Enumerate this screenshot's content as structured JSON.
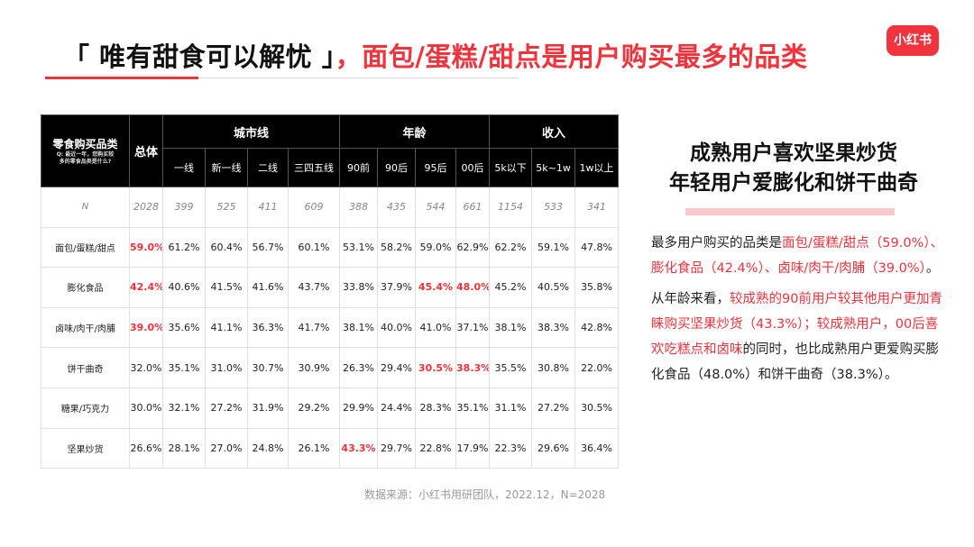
{
  "title": {
    "part1": "「 唯有甜食可以解忧 」",
    "part2": "，面包/蛋糕/甜点是用户购买最多的品类"
  },
  "brand": "小红书",
  "table": {
    "category_header": "零食购买品类",
    "category_subheader": "Q: 最近一年，您购买较多的零食品类是什么?",
    "total_header": "总体",
    "groups": {
      "city": "城市线",
      "age": "年龄",
      "income": "收入"
    },
    "columns": [
      "一线",
      "新一线",
      "二线",
      "三四五线",
      "90前",
      "90后",
      "95后",
      "00后",
      "5k以下",
      "5k~1w",
      "1w以上"
    ],
    "rows": [
      {
        "label": "N",
        "total": "2028",
        "values": [
          "399",
          "525",
          "411",
          "609",
          "388",
          "435",
          "544",
          "661",
          "1154",
          "533",
          "341"
        ]
      },
      {
        "label": "面包/蛋糕/甜点",
        "total": "59.0%",
        "values": [
          "61.2%",
          "60.4%",
          "56.7%",
          "60.1%",
          "53.1%",
          "58.2%",
          "59.0%",
          "62.9%",
          "62.2%",
          "59.1%",
          "47.8%"
        ]
      },
      {
        "label": "膨化食品",
        "total": "42.4%",
        "values": [
          "40.6%",
          "41.5%",
          "41.6%",
          "43.7%",
          "33.8%",
          "37.9%",
          "45.4%",
          "48.0%",
          "45.2%",
          "40.5%",
          "35.8%"
        ]
      },
      {
        "label": "卤味/肉干/肉脯",
        "total": "39.0%",
        "values": [
          "35.6%",
          "41.1%",
          "36.3%",
          "41.7%",
          "38.1%",
          "40.0%",
          "41.0%",
          "37.1%",
          "38.1%",
          "38.3%",
          "42.8%"
        ]
      },
      {
        "label": "饼干曲奇",
        "total": "32.0%",
        "values": [
          "35.1%",
          "31.0%",
          "30.7%",
          "30.9%",
          "26.3%",
          "29.4%",
          "30.5%",
          "38.3%",
          "35.5%",
          "30.8%",
          "22.0%"
        ]
      },
      {
        "label": "糖果/巧克力",
        "total": "30.0%",
        "values": [
          "32.1%",
          "27.2%",
          "31.9%",
          "29.2%",
          "29.9%",
          "24.4%",
          "28.3%",
          "35.1%",
          "31.1%",
          "27.2%",
          "30.5%"
        ]
      },
      {
        "label": "坚果炒货",
        "total": "26.6%",
        "values": [
          "28.1%",
          "27.0%",
          "24.8%",
          "26.1%",
          "43.3%",
          "29.7%",
          "22.8%",
          "17.9%",
          "22.3%",
          "29.6%",
          "36.4%"
        ]
      }
    ]
  },
  "summary": {
    "heading_line1": "成熟用户喜欢坚果炒货",
    "heading_line2": "年轻用户爱膨化和饼干曲奇",
    "p1": [
      {
        "t": "最多用户购买的品类是",
        "red": false
      },
      {
        "t": "面包/蛋糕/甜点（59.0%）、膨化食品（42.4%）、卤味/肉干/肉脯（39.0%）",
        "red": true
      },
      {
        "t": "。",
        "red": false
      }
    ],
    "p2": [
      {
        "t": "从年龄来看，",
        "red": false
      },
      {
        "t": "较成熟的90前用户较其他用户更加青睐购买坚果炒货（43.3%）；较成熟用户，00后喜欢吃糕点和卤味",
        "red": true
      },
      {
        "t": "的同时，也比成熟用户更爱购买膨化食品（48.0%）和饼干曲奇（38.3%）。",
        "red": false
      }
    ]
  },
  "source": "数据来源：小红书用研团队，2022.12，N=2028",
  "colors": {
    "accent": "#f0333c",
    "header_bg": "#000000",
    "highlight_bar": "#fbc9cb"
  }
}
